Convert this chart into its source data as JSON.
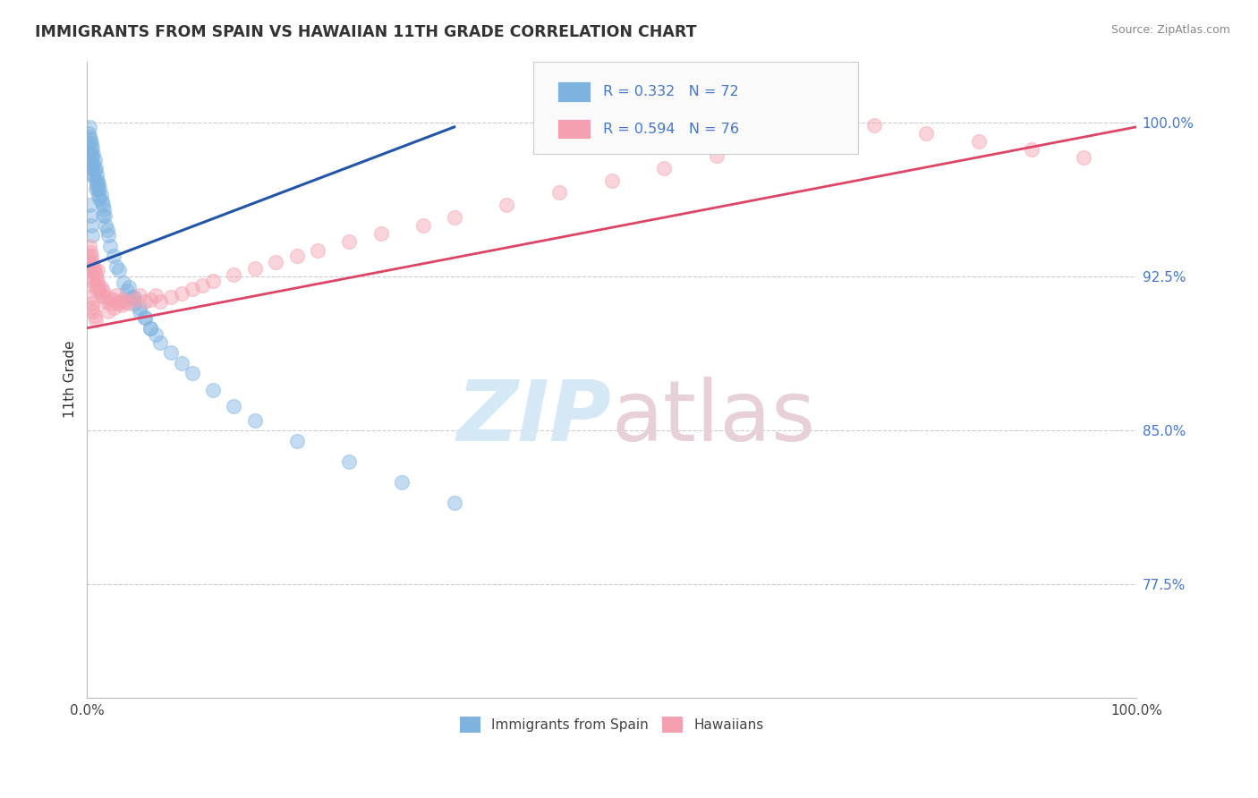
{
  "title": "IMMIGRANTS FROM SPAIN VS HAWAIIAN 11TH GRADE CORRELATION CHART",
  "source_text": "Source: ZipAtlas.com",
  "ylabel": "11th Grade",
  "ytick_labels": [
    "77.5%",
    "85.0%",
    "92.5%",
    "100.0%"
  ],
  "ytick_values": [
    0.775,
    0.85,
    0.925,
    1.0
  ],
  "xmin": 0.0,
  "xmax": 1.0,
  "ymin": 0.72,
  "ymax": 1.03,
  "blue_color": "#7EB3E0",
  "pink_color": "#F4A0B0",
  "blue_line_color": "#2255AA",
  "pink_line_color": "#DD4466",
  "tick_label_color": "#4477CC",
  "blue_R": 0.332,
  "blue_N": 72,
  "pink_R": 0.594,
  "pink_N": 76,
  "bottom_legend_labels": [
    "Immigrants from Spain",
    "Hawaiians"
  ],
  "grid_color": "#CCCCCC",
  "watermark_zip_color": "#D5E8F5",
  "watermark_atlas_color": "#E8D0D8",
  "blue_scatter_x": [
    0.001,
    0.001,
    0.002,
    0.002,
    0.002,
    0.003,
    0.003,
    0.003,
    0.004,
    0.004,
    0.004,
    0.004,
    0.005,
    0.005,
    0.005,
    0.006,
    0.006,
    0.006,
    0.007,
    0.007,
    0.008,
    0.008,
    0.008,
    0.009,
    0.009,
    0.01,
    0.01,
    0.011,
    0.011,
    0.012,
    0.012,
    0.013,
    0.014,
    0.015,
    0.015,
    0.016,
    0.017,
    0.018,
    0.019,
    0.02,
    0.022,
    0.025,
    0.028,
    0.03,
    0.035,
    0.038,
    0.042,
    0.045,
    0.05,
    0.055,
    0.06,
    0.065,
    0.07,
    0.08,
    0.09,
    0.1,
    0.12,
    0.14,
    0.16,
    0.2,
    0.25,
    0.3,
    0.35,
    0.04,
    0.045,
    0.05,
    0.055,
    0.06,
    0.002,
    0.003,
    0.004,
    0.005
  ],
  "blue_scatter_y": [
    0.995,
    0.99,
    0.998,
    0.993,
    0.985,
    0.992,
    0.988,
    0.982,
    0.99,
    0.985,
    0.98,
    0.975,
    0.988,
    0.983,
    0.978,
    0.985,
    0.98,
    0.975,
    0.982,
    0.977,
    0.978,
    0.972,
    0.968,
    0.975,
    0.97,
    0.972,
    0.968,
    0.97,
    0.965,
    0.968,
    0.963,
    0.965,
    0.962,
    0.96,
    0.955,
    0.958,
    0.955,
    0.95,
    0.948,
    0.945,
    0.94,
    0.935,
    0.93,
    0.928,
    0.922,
    0.918,
    0.915,
    0.912,
    0.908,
    0.905,
    0.9,
    0.897,
    0.893,
    0.888,
    0.883,
    0.878,
    0.87,
    0.862,
    0.855,
    0.845,
    0.835,
    0.825,
    0.815,
    0.92,
    0.915,
    0.91,
    0.905,
    0.9,
    0.96,
    0.955,
    0.95,
    0.945
  ],
  "pink_scatter_x": [
    0.001,
    0.001,
    0.002,
    0.002,
    0.003,
    0.003,
    0.004,
    0.004,
    0.005,
    0.005,
    0.006,
    0.006,
    0.007,
    0.007,
    0.008,
    0.008,
    0.009,
    0.01,
    0.01,
    0.011,
    0.012,
    0.013,
    0.014,
    0.015,
    0.016,
    0.018,
    0.02,
    0.022,
    0.025,
    0.028,
    0.03,
    0.033,
    0.036,
    0.04,
    0.045,
    0.05,
    0.055,
    0.06,
    0.065,
    0.07,
    0.08,
    0.09,
    0.1,
    0.11,
    0.12,
    0.14,
    0.16,
    0.18,
    0.2,
    0.22,
    0.25,
    0.28,
    0.32,
    0.35,
    0.4,
    0.45,
    0.5,
    0.55,
    0.6,
    0.65,
    0.7,
    0.75,
    0.8,
    0.85,
    0.9,
    0.95,
    0.003,
    0.004,
    0.005,
    0.006,
    0.007,
    0.008,
    0.02,
    0.025,
    0.03,
    0.035
  ],
  "pink_scatter_y": [
    0.935,
    0.928,
    0.94,
    0.932,
    0.937,
    0.93,
    0.935,
    0.928,
    0.932,
    0.925,
    0.93,
    0.923,
    0.928,
    0.921,
    0.926,
    0.919,
    0.924,
    0.928,
    0.922,
    0.92,
    0.918,
    0.92,
    0.916,
    0.918,
    0.915,
    0.913,
    0.915,
    0.912,
    0.914,
    0.916,
    0.913,
    0.911,
    0.913,
    0.912,
    0.914,
    0.916,
    0.913,
    0.914,
    0.916,
    0.913,
    0.915,
    0.917,
    0.919,
    0.921,
    0.923,
    0.926,
    0.929,
    0.932,
    0.935,
    0.938,
    0.942,
    0.946,
    0.95,
    0.954,
    0.96,
    0.966,
    0.972,
    0.978,
    0.984,
    0.99,
    0.996,
    0.999,
    0.995,
    0.991,
    0.987,
    0.983,
    0.915,
    0.912,
    0.91,
    0.908,
    0.906,
    0.904,
    0.908,
    0.91,
    0.912,
    0.914
  ],
  "blue_line_x": [
    0.0,
    0.35
  ],
  "blue_line_y": [
    0.93,
    0.998
  ],
  "pink_line_x": [
    0.0,
    1.0
  ],
  "pink_line_y": [
    0.9,
    0.998
  ]
}
